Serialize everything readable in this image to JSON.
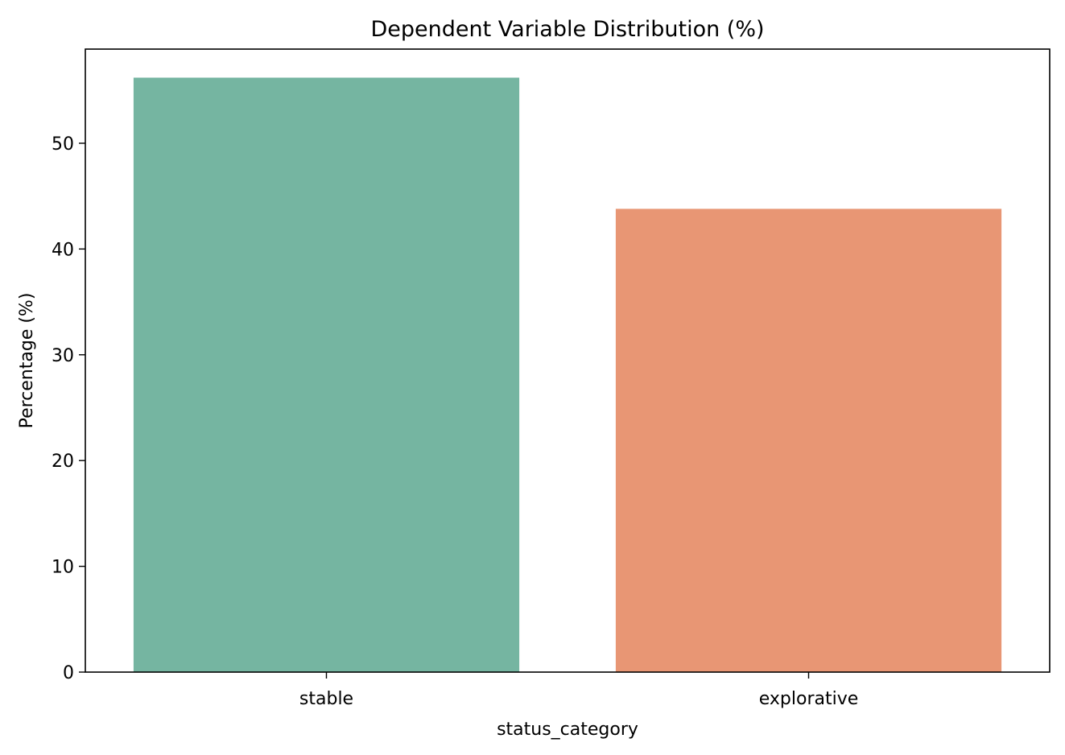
{
  "chart_data": {
    "type": "bar",
    "title": "Dependent Variable Distribution (%)",
    "xlabel": "status_category",
    "ylabel": "Percentage (%)",
    "categories": [
      "stable",
      "explorative"
    ],
    "values": [
      56.2,
      43.8
    ],
    "colors": [
      "#75b5a1",
      "#e89674"
    ],
    "ylim": [
      0,
      58.9
    ],
    "yticks": [
      0,
      10,
      20,
      30,
      40,
      50
    ],
    "ytick_labels": [
      "0",
      "10",
      "20",
      "30",
      "40",
      "50"
    ],
    "grid": false,
    "legend": "none"
  }
}
